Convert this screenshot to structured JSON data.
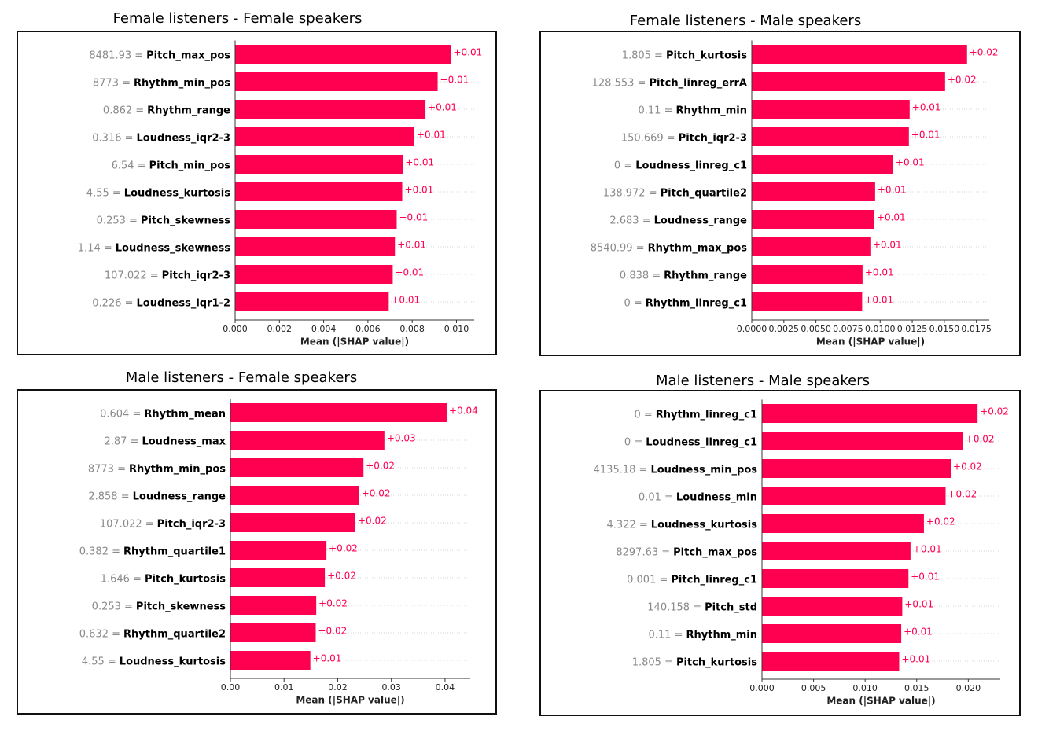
{
  "chart_data": [
    {
      "type": "barh",
      "title": "Female listeners - Female speakers",
      "color": "#ff0051",
      "grid": true,
      "categories": [
        "Pitch_max_pos",
        "Rhythm_min_pos",
        "Rhythm_range",
        "Loudness_iqr2-3",
        "Pitch_min_pos",
        "Loudness_kurtosis",
        "Pitch_skewness",
        "Loudness_skewness",
        "Pitch_iqr2-3",
        "Loudness_iqr1-2"
      ],
      "feature_values": [
        "8481.93 =",
        "8773 =",
        "0.862 =",
        "0.316 =",
        "6.54 =",
        "4.55 =",
        "0.253 =",
        "1.14 =",
        "107.022 =",
        "0.226 ="
      ],
      "values": [
        0.00975,
        0.00915,
        0.0086,
        0.0081,
        0.00758,
        0.00755,
        0.0073,
        0.00722,
        0.00712,
        0.00694
      ],
      "value_labels": [
        "+0.01",
        "+0.01",
        "+0.01",
        "+0.01",
        "+0.01",
        "+0.01",
        "+0.01",
        "+0.01",
        "+0.01",
        "+0.01"
      ],
      "xlabel": "Mean (|SHAP value|)",
      "xlim": [
        0,
        0.0108
      ],
      "xticks": [
        {
          "value": 0,
          "label": "0.000"
        },
        {
          "value": 0.002,
          "label": "0.002"
        },
        {
          "value": 0.004,
          "label": "0.004"
        },
        {
          "value": 0.006,
          "label": "0.006"
        },
        {
          "value": 0.008,
          "label": "0.008"
        },
        {
          "value": 0.01,
          "label": "0.010"
        }
      ]
    },
    {
      "type": "barh",
      "title": "Female listeners - Male speakers",
      "color": "#ff0051",
      "grid": true,
      "categories": [
        "Pitch_kurtosis",
        "Pitch_linreg_errA",
        "Rhythm_min",
        "Pitch_iqr2-3",
        "Loudness_linreg_c1",
        "Pitch_quartile2",
        "Loudness_range",
        "Rhythm_max_pos",
        "Rhythm_range",
        "Rhythm_linreg_c1"
      ],
      "feature_values": [
        "1.805 =",
        "128.553 =",
        "0.11 =",
        "150.669 =",
        "0 =",
        "138.972 =",
        "2.683 =",
        "8540.99 =",
        "0.838 =",
        "0 ="
      ],
      "values": [
        0.01677,
        0.01506,
        0.0123,
        0.01224,
        0.01102,
        0.00961,
        0.00955,
        0.00924,
        0.00863,
        0.0086
      ],
      "value_labels": [
        "+0.02",
        "+0.02",
        "+0.01",
        "+0.01",
        "+0.01",
        "+0.01",
        "+0.01",
        "+0.01",
        "+0.01",
        "+0.01"
      ],
      "xlabel": "Mean (|SHAP value|)",
      "xlim": [
        0,
        0.0185
      ],
      "xticks": [
        {
          "value": 0,
          "label": "0.0000"
        },
        {
          "value": 0.0025,
          "label": "0.0025"
        },
        {
          "value": 0.005,
          "label": "0.0050"
        },
        {
          "value": 0.0075,
          "label": "0.0075"
        },
        {
          "value": 0.01,
          "label": "0.0100"
        },
        {
          "value": 0.0125,
          "label": "0.0125"
        },
        {
          "value": 0.015,
          "label": "0.0150"
        },
        {
          "value": 0.0175,
          "label": "0.0175"
        }
      ]
    },
    {
      "type": "barh",
      "title": "Male listeners - Female speakers",
      "color": "#ff0051",
      "grid": true,
      "categories": [
        "Rhythm_mean",
        "Loudness_max",
        "Rhythm_min_pos",
        "Loudness_range",
        "Pitch_iqr2-3",
        "Rhythm_quartile1",
        "Pitch_kurtosis",
        "Pitch_skewness",
        "Rhythm_quartile2",
        "Loudness_kurtosis"
      ],
      "feature_values": [
        "0.604 =",
        "2.87 =",
        "8773 =",
        "2.858 =",
        "107.022 =",
        "0.382 =",
        "1.646 =",
        "0.253 =",
        "0.632 =",
        "4.55 ="
      ],
      "values": [
        0.0403,
        0.0287,
        0.0248,
        0.024,
        0.0233,
        0.0179,
        0.0176,
        0.016,
        0.0159,
        0.0149
      ],
      "value_labels": [
        "+0.04",
        "+0.03",
        "+0.02",
        "+0.02",
        "+0.02",
        "+0.02",
        "+0.02",
        "+0.02",
        "+0.02",
        "+0.01"
      ],
      "xlabel": "Mean (|SHAP value|)",
      "xlim": [
        0,
        0.0447
      ],
      "xticks": [
        {
          "value": 0,
          "label": "0.00"
        },
        {
          "value": 0.01,
          "label": "0.01"
        },
        {
          "value": 0.02,
          "label": "0.02"
        },
        {
          "value": 0.03,
          "label": "0.03"
        },
        {
          "value": 0.04,
          "label": "0.04"
        }
      ]
    },
    {
      "type": "barh",
      "title": "Male listeners - Male speakers",
      "color": "#ff0051",
      "grid": true,
      "categories": [
        "Rhythm_linreg_c1",
        "Loudness_linreg_c1",
        "Loudness_min_pos",
        "Loudness_min",
        "Loudness_kurtosis",
        "Pitch_max_pos",
        "Pitch_linreg_c1",
        "Pitch_std",
        "Rhythm_min",
        "Pitch_kurtosis"
      ],
      "feature_values": [
        "0 =",
        "0 =",
        "4135.18 =",
        "0.01 =",
        "4.322 =",
        "8297.63 =",
        "0.001 =",
        "140.158 =",
        "0.11 =",
        "1.805 ="
      ],
      "values": [
        0.0209,
        0.0195,
        0.0183,
        0.0178,
        0.0157,
        0.0144,
        0.0142,
        0.0136,
        0.0135,
        0.0133
      ],
      "value_labels": [
        "+0.02",
        "+0.02",
        "+0.02",
        "+0.02",
        "+0.02",
        "+0.01",
        "+0.01",
        "+0.01",
        "+0.01",
        "+0.01"
      ],
      "xlabel": "Mean (|SHAP value|)",
      "xlim": [
        0,
        0.0231
      ],
      "xticks": [
        {
          "value": 0,
          "label": "0.000"
        },
        {
          "value": 0.005,
          "label": "0.005"
        },
        {
          "value": 0.01,
          "label": "0.010"
        },
        {
          "value": 0.015,
          "label": "0.015"
        },
        {
          "value": 0.02,
          "label": "0.020"
        }
      ]
    }
  ]
}
